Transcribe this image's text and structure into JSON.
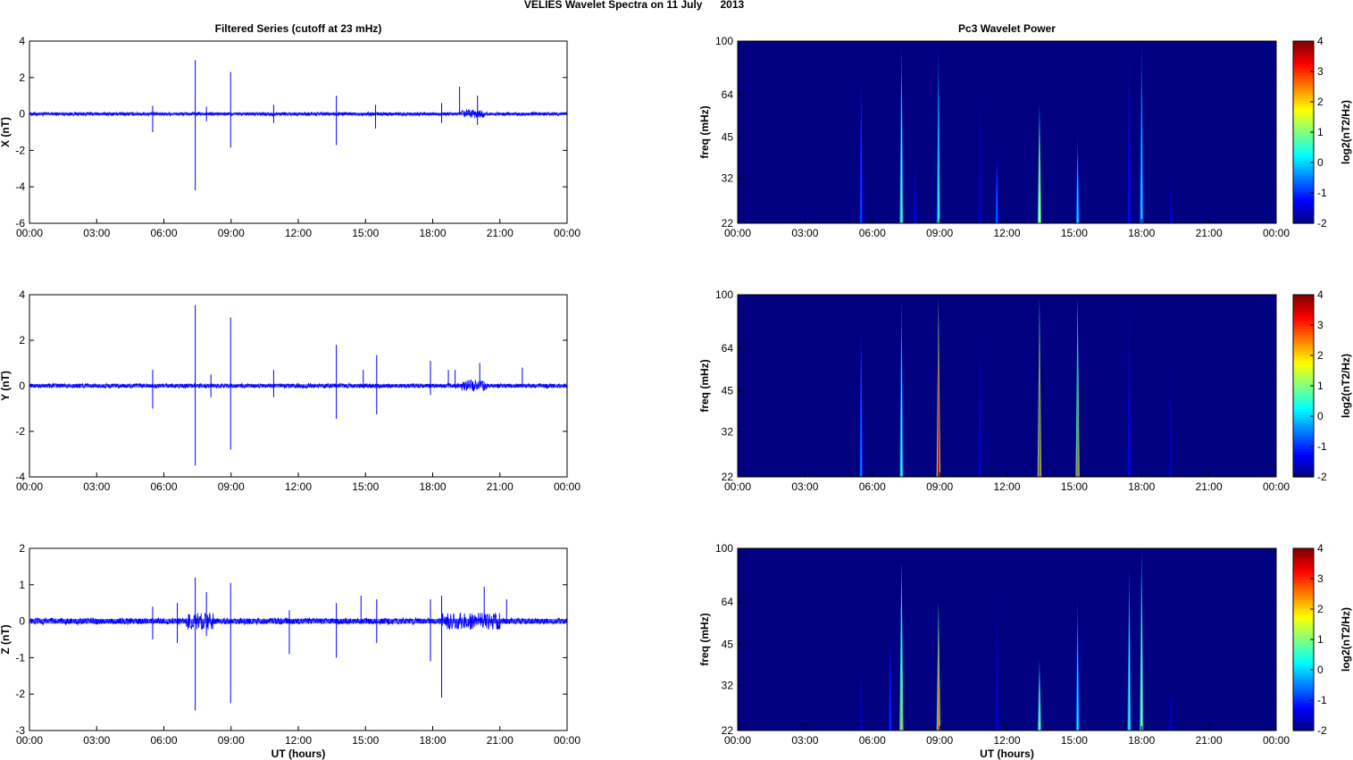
{
  "figure": {
    "title": "VELIES Wavelet Spectra on 11 July      2013"
  },
  "chart_data": [
    {
      "type": "line",
      "panel": "filtered-x",
      "title": "Filtered Series (cutoff at 23 mHz)",
      "xlabel": "",
      "ylabel": "X (nT)",
      "xlim": [
        "00:00",
        "24:00"
      ],
      "ylim": [
        -6,
        4
      ],
      "x_ticks": [
        "00:00",
        "03:00",
        "06:00",
        "09:00",
        "12:00",
        "15:00",
        "18:00",
        "21:00",
        "00:00"
      ],
      "y_ticks": [
        4,
        2,
        0,
        -2,
        -4,
        -6
      ],
      "series_color": "#0000ff",
      "baseline": 0,
      "noise_band": 0.1,
      "disturbed_intervals": [
        [
          19.3,
          20.3
        ]
      ],
      "spikes": [
        {
          "t": 5.5,
          "v": 0.45
        },
        {
          "t": 5.5,
          "v": -1.0
        },
        {
          "t": 7.4,
          "v": 2.95
        },
        {
          "t": 7.4,
          "v": -4.2
        },
        {
          "t": 7.9,
          "v": 0.4
        },
        {
          "t": 7.9,
          "v": -0.4
        },
        {
          "t": 8.98,
          "v": 2.3
        },
        {
          "t": 8.98,
          "v": -1.85
        },
        {
          "t": 10.9,
          "v": 0.5
        },
        {
          "t": 10.9,
          "v": -0.5
        },
        {
          "t": 13.7,
          "v": 1.0
        },
        {
          "t": 13.7,
          "v": -1.7
        },
        {
          "t": 15.45,
          "v": 0.5
        },
        {
          "t": 15.45,
          "v": -0.8
        },
        {
          "t": 18.4,
          "v": 0.6
        },
        {
          "t": 18.4,
          "v": -0.5
        },
        {
          "t": 19.2,
          "v": 1.5
        },
        {
          "t": 20.0,
          "v": 1.0
        },
        {
          "t": 20.0,
          "v": -0.6
        }
      ]
    },
    {
      "type": "line",
      "panel": "filtered-y",
      "title": "",
      "xlabel": "",
      "ylabel": "Y (nT)",
      "xlim": [
        "00:00",
        "24:00"
      ],
      "ylim": [
        -4,
        4
      ],
      "x_ticks": [
        "00:00",
        "03:00",
        "06:00",
        "09:00",
        "12:00",
        "15:00",
        "18:00",
        "21:00",
        "00:00"
      ],
      "y_ticks": [
        4,
        2,
        0,
        -2,
        -4
      ],
      "series_color": "#0000ff",
      "baseline": 0,
      "noise_band": 0.1,
      "disturbed_intervals": [
        [
          19.3,
          20.4
        ]
      ],
      "spikes": [
        {
          "t": 5.5,
          "v": 0.7
        },
        {
          "t": 5.5,
          "v": -1.0
        },
        {
          "t": 7.4,
          "v": 3.55
        },
        {
          "t": 7.4,
          "v": -3.5
        },
        {
          "t": 8.1,
          "v": 0.5
        },
        {
          "t": 8.1,
          "v": -0.5
        },
        {
          "t": 8.98,
          "v": 3.0
        },
        {
          "t": 8.98,
          "v": -2.8
        },
        {
          "t": 10.9,
          "v": 0.7
        },
        {
          "t": 10.9,
          "v": -0.5
        },
        {
          "t": 13.7,
          "v": 1.8
        },
        {
          "t": 13.7,
          "v": -1.45
        },
        {
          "t": 14.9,
          "v": 0.7
        },
        {
          "t": 15.5,
          "v": 1.35
        },
        {
          "t": 15.5,
          "v": -1.25
        },
        {
          "t": 17.9,
          "v": 1.1
        },
        {
          "t": 17.9,
          "v": -0.4
        },
        {
          "t": 18.7,
          "v": 0.7
        },
        {
          "t": 19.0,
          "v": 0.7
        },
        {
          "t": 20.1,
          "v": 1.0
        },
        {
          "t": 22.0,
          "v": 0.8
        }
      ]
    },
    {
      "type": "line",
      "panel": "filtered-z",
      "title": "",
      "xlabel": "UT (hours)",
      "ylabel": "Z (nT)",
      "xlim": [
        "00:00",
        "24:00"
      ],
      "ylim": [
        -3,
        2
      ],
      "x_ticks": [
        "00:00",
        "03:00",
        "06:00",
        "09:00",
        "12:00",
        "15:00",
        "18:00",
        "21:00",
        "00:00"
      ],
      "y_ticks": [
        2,
        1,
        0,
        -1,
        -2,
        -3
      ],
      "series_color": "#0000ff",
      "baseline": 0,
      "noise_band": 0.09,
      "disturbed_intervals": [
        [
          7.0,
          8.2
        ],
        [
          18.4,
          21.0
        ]
      ],
      "spikes": [
        {
          "t": 5.5,
          "v": 0.4
        },
        {
          "t": 5.5,
          "v": -0.5
        },
        {
          "t": 6.6,
          "v": 0.5
        },
        {
          "t": 6.6,
          "v": -0.6
        },
        {
          "t": 7.4,
          "v": 1.2
        },
        {
          "t": 7.4,
          "v": -2.45
        },
        {
          "t": 7.9,
          "v": 0.8
        },
        {
          "t": 7.9,
          "v": -0.4
        },
        {
          "t": 8.98,
          "v": 1.05
        },
        {
          "t": 8.98,
          "v": -2.25
        },
        {
          "t": 11.6,
          "v": 0.3
        },
        {
          "t": 11.6,
          "v": -0.9
        },
        {
          "t": 13.7,
          "v": 0.5
        },
        {
          "t": 13.7,
          "v": -1.0
        },
        {
          "t": 14.8,
          "v": 0.7
        },
        {
          "t": 15.5,
          "v": 0.6
        },
        {
          "t": 15.5,
          "v": -0.6
        },
        {
          "t": 17.9,
          "v": 0.6
        },
        {
          "t": 17.9,
          "v": -1.1
        },
        {
          "t": 18.4,
          "v": 0.7
        },
        {
          "t": 18.4,
          "v": -2.1
        },
        {
          "t": 20.3,
          "v": 0.95
        },
        {
          "t": 21.3,
          "v": 0.6
        }
      ]
    },
    {
      "type": "heatmap",
      "panel": "wavelet-x",
      "title": "Pc3 Wavelet Power",
      "xlabel": "",
      "ylabel": "freq (mHz)",
      "xlim": [
        "00:00",
        "24:00"
      ],
      "ylim": [
        22,
        100
      ],
      "y_scale": "log",
      "x_ticks": [
        "00:00",
        "03:00",
        "06:00",
        "09:00",
        "12:00",
        "15:00",
        "18:00",
        "21:00",
        "00:00"
      ],
      "y_ticks": [
        100,
        64,
        45,
        32,
        22
      ],
      "colorbar": {
        "label": "log2(nT2/Hz)",
        "range": [
          -2,
          4
        ],
        "ticks": [
          4,
          3,
          2,
          1,
          0,
          -1,
          -2
        ],
        "colormap": "jet"
      },
      "background_level": -2,
      "events": [
        {
          "t": 5.5,
          "f_top": 80,
          "level": -0.8
        },
        {
          "t": 7.3,
          "f_top": 95,
          "level": 0.9
        },
        {
          "t": 7.9,
          "f_top": 38,
          "level": -1.4
        },
        {
          "t": 8.95,
          "f_top": 95,
          "level": 0.4
        },
        {
          "t": 10.8,
          "f_top": 70,
          "level": -1.6
        },
        {
          "t": 11.55,
          "f_top": 40,
          "level": -0.6
        },
        {
          "t": 13.45,
          "f_top": 60,
          "level": 1.6
        },
        {
          "t": 15.15,
          "f_top": 45,
          "level": 0.1
        },
        {
          "t": 17.45,
          "f_top": 100,
          "level": -1.2
        },
        {
          "t": 18.0,
          "f_top": 100,
          "level": 0.1
        },
        {
          "t": 19.3,
          "f_top": 32,
          "level": -1.5
        }
      ]
    },
    {
      "type": "heatmap",
      "panel": "wavelet-y",
      "title": "",
      "xlabel": "",
      "ylabel": "freq (mHz)",
      "xlim": [
        "00:00",
        "24:00"
      ],
      "ylim": [
        22,
        100
      ],
      "y_scale": "log",
      "x_ticks": [
        "00:00",
        "03:00",
        "06:00",
        "09:00",
        "12:00",
        "15:00",
        "18:00",
        "21:00",
        "00:00"
      ],
      "y_ticks": [
        100,
        64,
        45,
        32,
        22
      ],
      "colorbar": {
        "label": "log2(nT2/Hz)",
        "range": [
          -2,
          4
        ],
        "ticks": [
          4,
          3,
          2,
          1,
          0,
          -1,
          -2
        ],
        "colormap": "jet"
      },
      "background_level": -2,
      "events": [
        {
          "t": 5.5,
          "f_top": 80,
          "level": -0.5
        },
        {
          "t": 7.3,
          "f_top": 98,
          "level": 0.6
        },
        {
          "t": 8.95,
          "f_top": 98,
          "level": 3.4
        },
        {
          "t": 10.8,
          "f_top": 70,
          "level": -1.5
        },
        {
          "t": 13.45,
          "f_top": 98,
          "level": 3.0
        },
        {
          "t": 15.15,
          "f_top": 98,
          "level": 2.8
        },
        {
          "t": 17.45,
          "f_top": 100,
          "level": -1.3
        },
        {
          "t": 19.3,
          "f_top": 60,
          "level": -1.6
        }
      ]
    },
    {
      "type": "heatmap",
      "panel": "wavelet-z",
      "title": "",
      "xlabel": "UT (hours)",
      "ylabel": "freq (mHz)",
      "xlim": [
        "00:00",
        "24:00"
      ],
      "ylim": [
        22,
        100
      ],
      "y_scale": "log",
      "x_ticks": [
        "00:00",
        "03:00",
        "06:00",
        "09:00",
        "12:00",
        "15:00",
        "18:00",
        "21:00",
        "00:00"
      ],
      "y_ticks": [
        100,
        64,
        45,
        32,
        22
      ],
      "colorbar": {
        "label": "log2(nT2/Hz)",
        "range": [
          -2,
          4
        ],
        "ticks": [
          4,
          3,
          2,
          1,
          0,
          -1,
          -2
        ],
        "colormap": "jet"
      },
      "background_level": -2,
      "events": [
        {
          "t": 5.5,
          "f_top": 40,
          "level": -1.6
        },
        {
          "t": 6.8,
          "f_top": 50,
          "level": -1.0
        },
        {
          "t": 7.3,
          "f_top": 90,
          "level": 2.2
        },
        {
          "t": 8.95,
          "f_top": 65,
          "level": 2.6
        },
        {
          "t": 11.55,
          "f_top": 70,
          "level": -1.5
        },
        {
          "t": 13.45,
          "f_top": 40,
          "level": 1.0
        },
        {
          "t": 15.15,
          "f_top": 65,
          "level": 0.2
        },
        {
          "t": 17.45,
          "f_top": 85,
          "level": 0.6
        },
        {
          "t": 18.0,
          "f_top": 100,
          "level": 1.2
        },
        {
          "t": 19.3,
          "f_top": 32,
          "level": -1.5
        }
      ]
    }
  ]
}
